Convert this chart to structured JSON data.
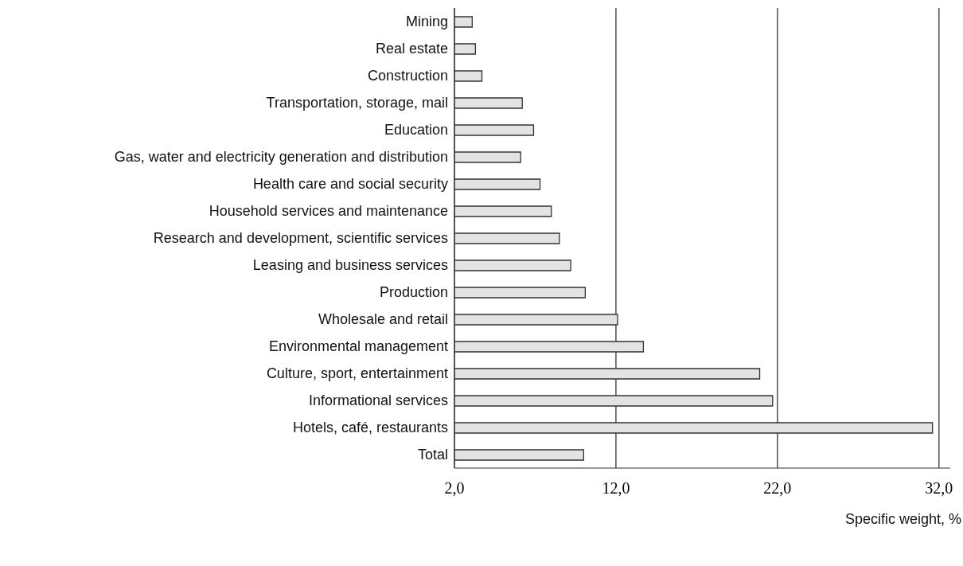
{
  "chart_data": {
    "type": "bar",
    "orientation": "horizontal",
    "xlabel": "Specific weight, %",
    "categories": [
      "Mining",
      "Real estate",
      "Construction",
      "Transportation, storage, mail",
      "Education",
      "Gas, water and electricity generation and distribution",
      "Health care and social security",
      "Household services and maintenance",
      "Research and development, scientific services",
      "Leasing and business services",
      "Production",
      "Wholesale and retail",
      "Environmental management",
      "Culture, sport, entertainment",
      "Informational services",
      "Hotels, café, restaurants",
      "Total"
    ],
    "values": [
      3.1,
      3.3,
      3.7,
      6.2,
      6.9,
      6.1,
      7.3,
      8.0,
      8.5,
      9.2,
      10.1,
      12.1,
      13.7,
      20.9,
      21.7,
      31.6,
      10.0
    ],
    "color": "#e3e3e3",
    "xlim": [
      2,
      32.7
    ],
    "xticks": [
      {
        "value": 2,
        "label": "2,0"
      },
      {
        "value": 12,
        "label": "12,0"
      },
      {
        "value": 22,
        "label": "22,0"
      },
      {
        "value": 32,
        "label": "32,0"
      }
    ],
    "grid": "x"
  }
}
